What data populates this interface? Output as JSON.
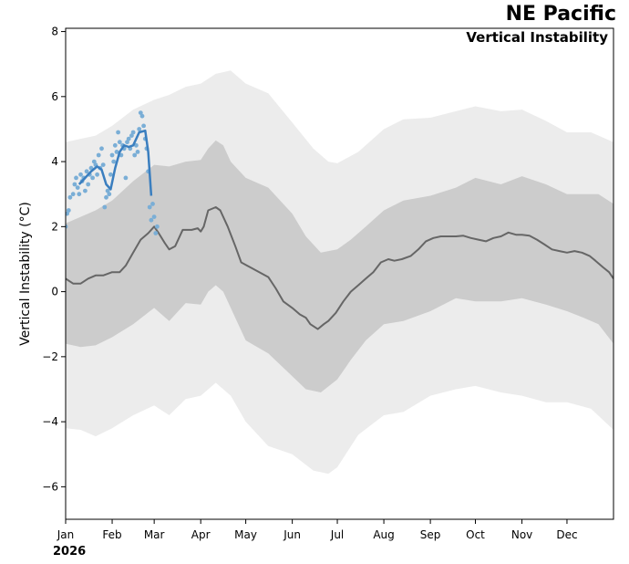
{
  "chart_data": {
    "type": "line",
    "title": "NE Pacific",
    "subtitle": "Vertical Instability",
    "ylabel": "Vertical Instability (°C)",
    "year_label": "2026",
    "ylim": [
      -7,
      8.1
    ],
    "xlim_days": [
      0,
      365
    ],
    "yticks": [
      -6,
      -4,
      -2,
      0,
      2,
      4,
      6,
      8
    ],
    "ytick_labels": [
      "−6",
      "−4",
      "−2",
      "0",
      "2",
      "4",
      "6",
      "8"
    ],
    "month_ticks": [
      {
        "label": "Jan",
        "day": 0
      },
      {
        "label": "Feb",
        "day": 31
      },
      {
        "label": "Mar",
        "day": 59
      },
      {
        "label": "Apr",
        "day": 90
      },
      {
        "label": "May",
        "day": 120
      },
      {
        "label": "Jun",
        "day": 151
      },
      {
        "label": "Jul",
        "day": 181
      },
      {
        "label": "Aug",
        "day": 212
      },
      {
        "label": "Sep",
        "day": 243
      },
      {
        "label": "Oct",
        "day": 273
      },
      {
        "label": "Nov",
        "day": 304
      },
      {
        "label": "Dec",
        "day": 334
      }
    ],
    "colors": {
      "outer_band": "#ececec",
      "inner_band": "#cccccc",
      "climatology": "#666666",
      "current_line": "#3a7ebf",
      "current_points": "#7aaed6"
    },
    "series": [
      {
        "role": "climatology_mean",
        "day": [
          0,
          5,
          10,
          15,
          20,
          25,
          31,
          36,
          40,
          45,
          50,
          55,
          59,
          62,
          66,
          69,
          73,
          78,
          80,
          84,
          88,
          90,
          92,
          95,
          100,
          103,
          108,
          113,
          117,
          121,
          123,
          129,
          135,
          140,
          145,
          151,
          156,
          160,
          163,
          168,
          172,
          175,
          180,
          185,
          190,
          195,
          200,
          205,
          210,
          215,
          219,
          224,
          230,
          235,
          240,
          245,
          250,
          255,
          260,
          265,
          270,
          275,
          280,
          285,
          290,
          295,
          300,
          304,
          309,
          314,
          319,
          324,
          329,
          334,
          339,
          344,
          349,
          353,
          358,
          362,
          365
        ],
        "value": [
          0.4,
          0.25,
          0.25,
          0.4,
          0.5,
          0.5,
          0.6,
          0.6,
          0.8,
          1.2,
          1.6,
          1.8,
          2.0,
          1.8,
          1.5,
          1.3,
          1.4,
          1.9,
          1.9,
          1.9,
          1.95,
          1.85,
          2.0,
          2.5,
          2.6,
          2.5,
          2.0,
          1.4,
          0.9,
          0.8,
          0.75,
          0.6,
          0.45,
          0.1,
          -0.3,
          -0.5,
          -0.7,
          -0.8,
          -1.0,
          -1.15,
          -1.0,
          -0.9,
          -0.65,
          -0.3,
          0.0,
          0.2,
          0.4,
          0.6,
          0.9,
          1.0,
          0.95,
          1.0,
          1.1,
          1.3,
          1.55,
          1.65,
          1.7,
          1.7,
          1.7,
          1.72,
          1.65,
          1.6,
          1.55,
          1.65,
          1.7,
          1.82,
          1.75,
          1.75,
          1.72,
          1.6,
          1.45,
          1.3,
          1.25,
          1.2,
          1.25,
          1.2,
          1.1,
          0.95,
          0.75,
          0.6,
          0.4
        ]
      },
      {
        "role": "inner_band",
        "day": [
          0,
          10,
          20,
          31,
          45,
          59,
          69,
          80,
          90,
          95,
          100,
          105,
          110,
          120,
          135,
          151,
          160,
          170,
          181,
          190,
          200,
          212,
          225,
          243,
          260,
          273,
          290,
          304,
          320,
          334,
          345,
          355,
          365
        ],
        "upper": [
          2.1,
          2.3,
          2.5,
          2.8,
          3.4,
          3.9,
          3.85,
          4.0,
          4.05,
          4.4,
          4.65,
          4.5,
          4.0,
          3.5,
          3.2,
          2.4,
          1.7,
          1.2,
          1.3,
          1.6,
          2.0,
          2.5,
          2.8,
          2.95,
          3.2,
          3.5,
          3.3,
          3.55,
          3.3,
          3.0,
          3.0,
          3.0,
          2.7
        ],
        "lower": [
          -1.6,
          -1.7,
          -1.65,
          -1.4,
          -1.0,
          -0.5,
          -0.9,
          -0.35,
          -0.4,
          0.0,
          0.2,
          0.0,
          -0.5,
          -1.5,
          -1.9,
          -2.6,
          -3.0,
          -3.1,
          -2.7,
          -2.1,
          -1.5,
          -1.0,
          -0.9,
          -0.6,
          -0.2,
          -0.3,
          -0.3,
          -0.2,
          -0.4,
          -0.6,
          -0.8,
          -1.0,
          -1.6
        ]
      },
      {
        "role": "outer_band",
        "day": [
          0,
          10,
          20,
          31,
          45,
          59,
          69,
          80,
          90,
          100,
          110,
          120,
          135,
          151,
          165,
          175,
          181,
          195,
          212,
          225,
          243,
          260,
          273,
          290,
          304,
          320,
          334,
          350,
          365
        ],
        "upper": [
          4.6,
          4.7,
          4.8,
          5.1,
          5.6,
          5.9,
          6.05,
          6.3,
          6.4,
          6.7,
          6.8,
          6.4,
          6.1,
          5.2,
          4.4,
          4.0,
          3.95,
          4.3,
          5.0,
          5.3,
          5.35,
          5.55,
          5.7,
          5.55,
          5.6,
          5.25,
          4.9,
          4.9,
          4.6
        ],
        "lower": [
          -4.2,
          -4.25,
          -4.45,
          -4.2,
          -3.8,
          -3.5,
          -3.8,
          -3.3,
          -3.2,
          -2.8,
          -3.2,
          -4.0,
          -4.75,
          -5.0,
          -5.5,
          -5.6,
          -5.4,
          -4.4,
          -3.8,
          -3.7,
          -3.2,
          -3.0,
          -2.9,
          -3.1,
          -3.2,
          -3.4,
          -3.4,
          -3.6,
          -4.25
        ]
      },
      {
        "role": "current_year_line",
        "day": [
          9,
          13,
          17,
          21,
          24,
          27,
          30,
          33,
          36,
          39,
          42,
          45,
          49,
          53,
          55,
          57
        ],
        "value": [
          3.3,
          3.5,
          3.7,
          3.85,
          3.75,
          3.3,
          3.15,
          3.8,
          4.3,
          4.5,
          4.45,
          4.5,
          4.9,
          4.95,
          4.3,
          2.95
        ]
      },
      {
        "role": "current_year_daily",
        "day": [
          0,
          1,
          2,
          3,
          5,
          6,
          7,
          8,
          9,
          10,
          11,
          12,
          13,
          14,
          15,
          16,
          17,
          18,
          19,
          20,
          21,
          22,
          23,
          24,
          25,
          26,
          27,
          28,
          29,
          30,
          31,
          32,
          33,
          34,
          35,
          36,
          37,
          38,
          39,
          40,
          41,
          42,
          43,
          44,
          45,
          46,
          47,
          48,
          49,
          50,
          51,
          52,
          53,
          54,
          55,
          56,
          57,
          58,
          59,
          60,
          61
        ],
        "value": [
          2.0,
          2.4,
          2.5,
          2.9,
          3.0,
          3.3,
          3.5,
          3.2,
          3.0,
          3.6,
          3.4,
          3.5,
          3.1,
          3.7,
          3.3,
          3.6,
          3.8,
          3.5,
          4.0,
          3.9,
          3.6,
          4.2,
          3.8,
          4.4,
          3.9,
          2.6,
          2.9,
          3.1,
          3.0,
          3.6,
          4.2,
          4.0,
          4.5,
          4.3,
          4.9,
          4.6,
          4.2,
          4.5,
          4.4,
          3.5,
          4.6,
          4.7,
          4.4,
          4.8,
          4.9,
          4.2,
          4.5,
          4.3,
          5.0,
          5.5,
          5.4,
          5.1,
          4.7,
          4.4,
          3.7,
          2.6,
          2.2,
          2.7,
          2.3,
          1.8,
          2.0
        ]
      }
    ]
  }
}
